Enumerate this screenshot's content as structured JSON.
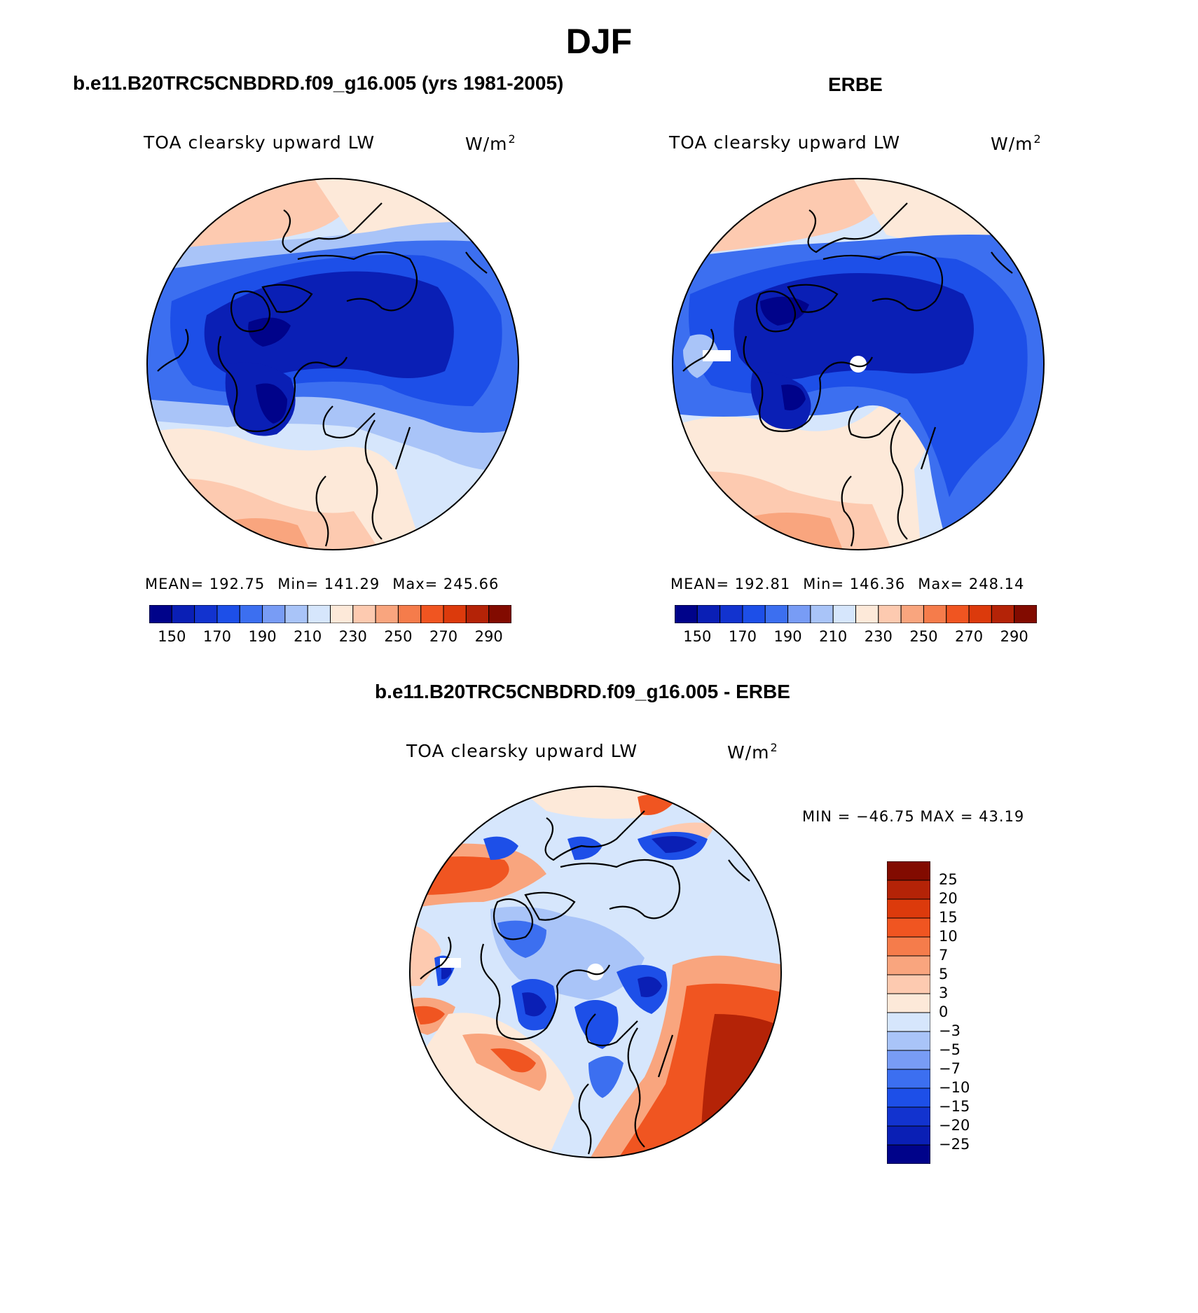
{
  "season": "DJF",
  "panels": {
    "model": {
      "case_title": "b.e11.B20TRC5CNBDRD.f09_g16.005 (yrs 1981-2005)",
      "variable": "TOA clearsky upward LW",
      "units": "W/m",
      "units_exp": "2",
      "stats": {
        "mean": "MEAN= 192.75",
        "min": "Min= 141.29",
        "max": "Max= 245.66"
      }
    },
    "obs": {
      "case_title": "ERBE",
      "variable": "TOA clearsky upward LW",
      "units": "W/m",
      "units_exp": "2",
      "stats": {
        "mean": "MEAN= 192.81",
        "min": "Min= 146.36",
        "max": "Max= 248.14"
      }
    },
    "diff": {
      "case_title": "b.e11.B20TRC5CNBDRD.f09_g16.005 - ERBE",
      "variable": "TOA clearsky upward LW",
      "units": "W/m",
      "units_exp": "2",
      "minmax": "MIN = −46.75 MAX =   43.19"
    }
  },
  "colorbar": {
    "labels": [
      "150",
      "170",
      "190",
      "210",
      "230",
      "250",
      "270",
      "290"
    ],
    "colors": [
      "#00038a",
      "#0a1fb5",
      "#1233cf",
      "#1d4fe8",
      "#3c6ff0",
      "#789cf5",
      "#a9c4f8",
      "#d6e6fc",
      "#fde9d9",
      "#fdcab0",
      "#f9a57e",
      "#f57c4b",
      "#f05521",
      "#dc3a0c",
      "#b42307",
      "#820b00"
    ]
  },
  "diff_colorbar": {
    "labels": [
      "25",
      "20",
      "15",
      "10",
      "7",
      "5",
      "3",
      "0",
      "−3",
      "−5",
      "−7",
      "−10",
      "−15",
      "−20",
      "−25"
    ],
    "colors": [
      "#820b00",
      "#b42307",
      "#dc3a0c",
      "#f05521",
      "#f57c4b",
      "#f9a57e",
      "#fdcab0",
      "#fde9d9",
      "#d6e6fc",
      "#a9c4f8",
      "#789cf5",
      "#3c6ff0",
      "#1d4fe8",
      "#1233cf",
      "#0a1fb5",
      "#00038a"
    ]
  },
  "map_colors": {
    "deep_blue": "#00038a",
    "dark_blue": "#0a1fb5",
    "blue": "#1d4fe8",
    "mid_blue": "#3c6ff0",
    "light_blue": "#a9c4f8",
    "pale_blue": "#d6e6fc",
    "pale_orange": "#fde9d9",
    "light_orange": "#fdcab0",
    "salmon": "#f9a57e",
    "orange": "#f05521",
    "dark_red": "#b42307"
  }
}
